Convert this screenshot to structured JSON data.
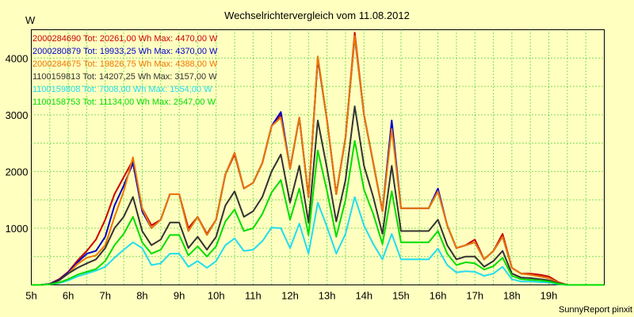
{
  "chart_data": {
    "type": "line",
    "title": "Wechselrichtervergleich vom 11.08.2012",
    "ylabel": "W",
    "xlabel": "",
    "footer": "SunnyReport pinxit",
    "ylim": [
      0,
      4500
    ],
    "xlim": [
      5,
      20.5
    ],
    "grid": true,
    "legend_position": "top-left",
    "y_ticks": [
      1000,
      2000,
      3000,
      4000
    ],
    "x_ticks": [
      {
        "value": 5,
        "label": "5h"
      },
      {
        "value": 6,
        "label": "6h"
      },
      {
        "value": 7,
        "label": "7h"
      },
      {
        "value": 8,
        "label": "8h"
      },
      {
        "value": 9,
        "label": "9h"
      },
      {
        "value": 10,
        "label": "10h"
      },
      {
        "value": 11,
        "label": "11h"
      },
      {
        "value": 12,
        "label": "12h"
      },
      {
        "value": 13,
        "label": "13h"
      },
      {
        "value": 14,
        "label": "14h"
      },
      {
        "value": 15,
        "label": "15h"
      },
      {
        "value": 16,
        "label": "16h"
      },
      {
        "value": 17,
        "label": "17h"
      },
      {
        "value": 18,
        "label": "18h"
      },
      {
        "value": 19,
        "label": "19h"
      }
    ],
    "x": [
      5.0,
      5.25,
      5.5,
      5.75,
      6.0,
      6.25,
      6.5,
      6.75,
      7.0,
      7.25,
      7.5,
      7.75,
      8.0,
      8.25,
      8.5,
      8.75,
      9.0,
      9.25,
      9.5,
      9.75,
      10.0,
      10.25,
      10.5,
      10.75,
      11.0,
      11.25,
      11.5,
      11.75,
      12.0,
      12.25,
      12.5,
      12.75,
      13.0,
      13.25,
      13.5,
      13.75,
      14.0,
      14.25,
      14.5,
      14.75,
      15.0,
      15.25,
      15.5,
      15.75,
      16.0,
      16.25,
      16.5,
      16.75,
      17.0,
      17.25,
      17.5,
      17.75,
      18.0,
      18.25,
      18.5,
      18.75,
      19.0,
      19.25,
      19.5,
      19.75,
      20.0,
      20.25,
      20.5
    ],
    "series": [
      {
        "name": "2000284690 Tot: 20261,00 Wh Max: 4470,00 W",
        "color": "#cc0000",
        "values": [
          0,
          0,
          20,
          100,
          230,
          430,
          600,
          800,
          1150,
          1600,
          1900,
          2200,
          1350,
          1050,
          1150,
          1600,
          1600,
          1000,
          1200,
          900,
          1150,
          1950,
          2300,
          1700,
          1800,
          2150,
          2800,
          3000,
          2050,
          2950,
          1550,
          4000,
          2900,
          1600,
          2600,
          4450,
          3000,
          2150,
          1300,
          2800,
          1350,
          1350,
          1350,
          1350,
          1650,
          1050,
          650,
          700,
          800,
          450,
          600,
          900,
          300,
          200,
          200,
          180,
          150,
          50,
          0,
          0,
          0,
          0,
          0
        ]
      },
      {
        "name": "2000280879 Tot: 19933,25 Wh Max: 4370,00 W",
        "color": "#0000cc",
        "values": [
          0,
          0,
          20,
          90,
          220,
          400,
          550,
          600,
          850,
          1400,
          1750,
          2150,
          1300,
          1000,
          1150,
          1600,
          1600,
          950,
          1200,
          880,
          1150,
          1950,
          2330,
          1700,
          1800,
          2150,
          2800,
          3050,
          2050,
          2950,
          1550,
          4000,
          2900,
          1600,
          2600,
          4370,
          3000,
          2150,
          1300,
          2900,
          1350,
          1350,
          1350,
          1350,
          1700,
          1050,
          650,
          700,
          750,
          450,
          600,
          850,
          300,
          200,
          180,
          150,
          120,
          40,
          0,
          0,
          0,
          0,
          0
        ]
      },
      {
        "name": "2000284675 Tot: 19826,75 Wh Max: 4388,00 W",
        "color": "#ee7700",
        "values": [
          0,
          0,
          15,
          80,
          200,
          370,
          480,
          520,
          700,
          1200,
          1650,
          2250,
          1350,
          1000,
          1150,
          1600,
          1600,
          950,
          1200,
          880,
          1150,
          1950,
          2330,
          1700,
          1800,
          2150,
          2800,
          2950,
          2050,
          2950,
          1550,
          4030,
          2900,
          1600,
          2600,
          4390,
          3000,
          2150,
          1300,
          2750,
          1350,
          1350,
          1350,
          1350,
          1650,
          1050,
          650,
          700,
          750,
          450,
          600,
          850,
          300,
          200,
          180,
          150,
          120,
          40,
          0,
          0,
          0,
          0,
          0
        ]
      },
      {
        "name": "1100159813 Tot: 14207,25 Wh Max: 3157,00 W",
        "color": "#333333",
        "values": [
          0,
          0,
          15,
          80,
          200,
          300,
          380,
          450,
          650,
          1000,
          1200,
          1550,
          950,
          700,
          800,
          1100,
          1100,
          650,
          850,
          620,
          850,
          1400,
          1650,
          1200,
          1300,
          1550,
          2000,
          2300,
          1450,
          2100,
          1100,
          2900,
          2050,
          1120,
          1850,
          3150,
          2100,
          1550,
          900,
          2100,
          950,
          950,
          950,
          950,
          1150,
          700,
          450,
          500,
          500,
          320,
          420,
          600,
          200,
          130,
          120,
          100,
          80,
          30,
          0,
          0,
          0,
          0,
          0
        ]
      },
      {
        "name": "1100159808 Tot: 7008,00 Wh Max: 1554,00 W",
        "color": "#22ddee",
        "values": [
          0,
          0,
          10,
          30,
          80,
          150,
          200,
          250,
          320,
          480,
          620,
          750,
          650,
          350,
          380,
          550,
          550,
          320,
          420,
          300,
          420,
          700,
          820,
          600,
          620,
          770,
          1010,
          1000,
          650,
          1080,
          550,
          1450,
          1020,
          550,
          900,
          1550,
          1050,
          720,
          450,
          900,
          450,
          450,
          450,
          450,
          640,
          350,
          220,
          240,
          230,
          160,
          200,
          320,
          100,
          60,
          60,
          50,
          40,
          10,
          0,
          0,
          0,
          0,
          0
        ]
      },
      {
        "name": "1100158753 Tot: 11134,00 Wh Max: 2547,00 W",
        "color": "#00dd00",
        "values": [
          0,
          0,
          10,
          40,
          100,
          180,
          230,
          280,
          420,
          700,
          900,
          1200,
          750,
          550,
          620,
          880,
          880,
          520,
          680,
          500,
          680,
          1120,
          1330,
          950,
          1000,
          1250,
          1630,
          1850,
          1150,
          1700,
          880,
          2370,
          1650,
          850,
          1500,
          2540,
          1680,
          1250,
          720,
          1650,
          750,
          750,
          750,
          750,
          950,
          550,
          350,
          400,
          380,
          270,
          330,
          480,
          160,
          100,
          90,
          80,
          60,
          20,
          0,
          0,
          0,
          0,
          0
        ]
      }
    ]
  }
}
